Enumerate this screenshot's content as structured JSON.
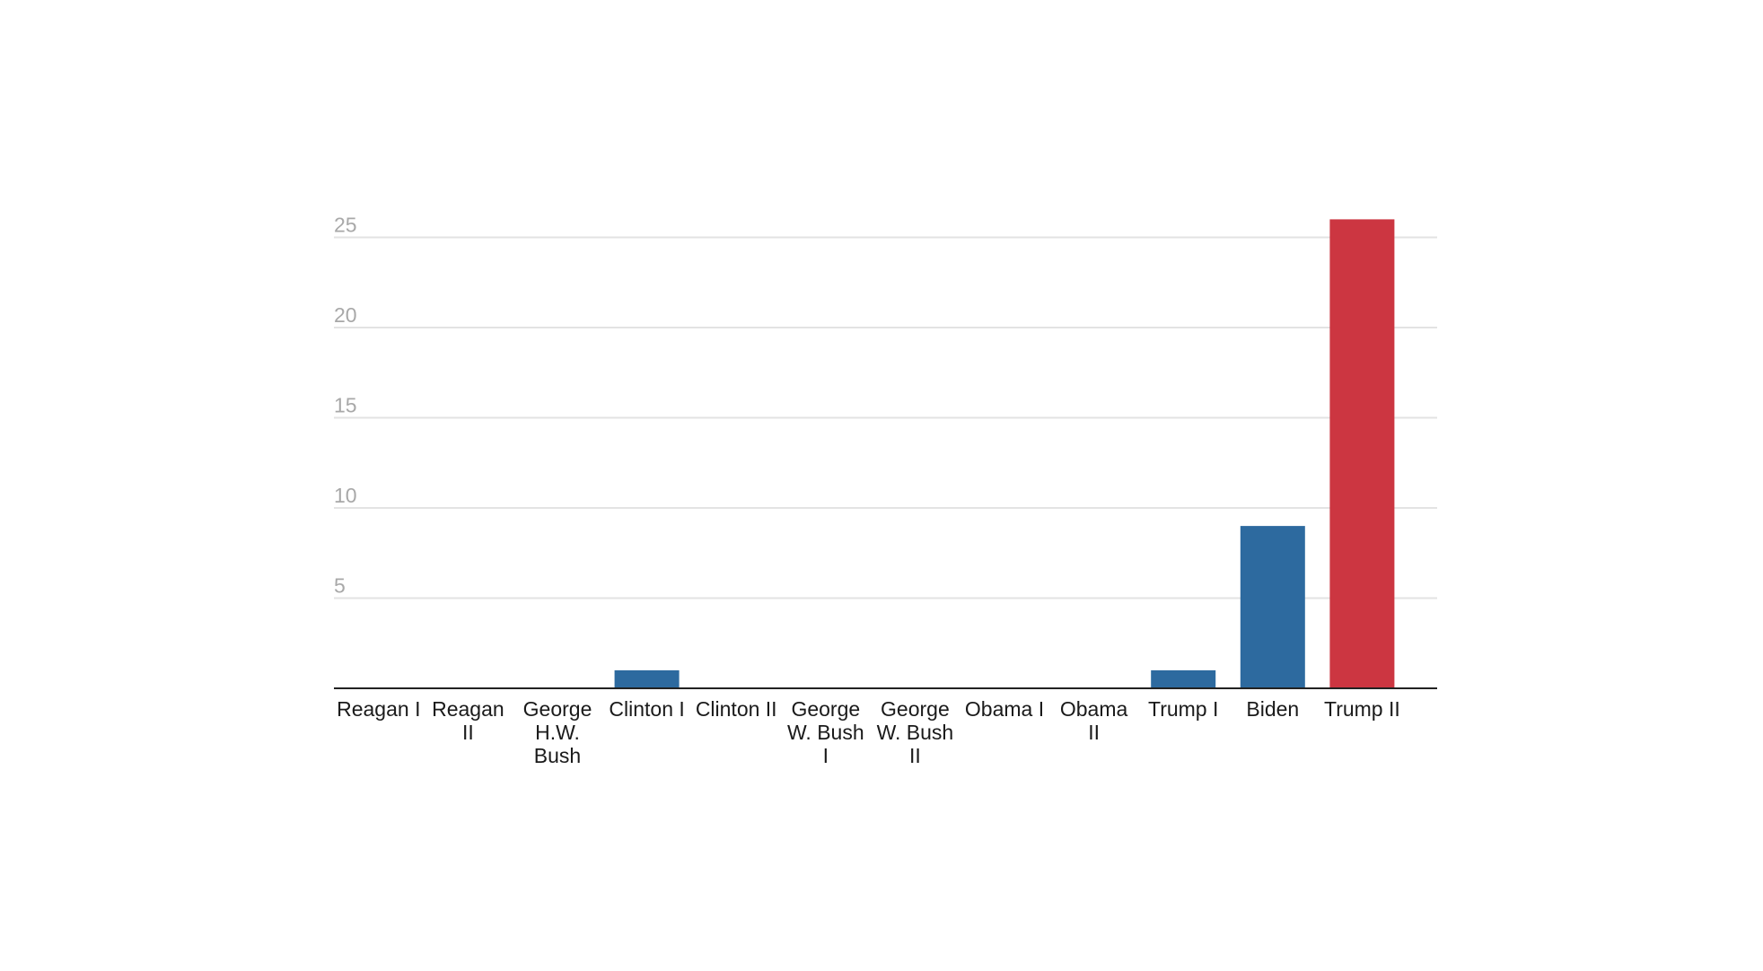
{
  "chart_data": {
    "type": "bar",
    "categories": [
      "Reagan I",
      "Reagan II",
      "George H.W. Bush",
      "Clinton I",
      "Clinton II",
      "George W. Bush I",
      "George W. Bush II",
      "Obama I",
      "Obama II",
      "Trump I",
      "Biden",
      "Trump II"
    ],
    "category_lines": [
      [
        "Reagan I"
      ],
      [
        "Reagan",
        "II"
      ],
      [
        "George",
        "H.W.",
        "Bush"
      ],
      [
        "Clinton I"
      ],
      [
        "Clinton II"
      ],
      [
        "George",
        "W. Bush",
        "I"
      ],
      [
        "George",
        "W. Bush",
        "II"
      ],
      [
        "Obama I"
      ],
      [
        "Obama",
        "II"
      ],
      [
        "Trump I"
      ],
      [
        "Biden"
      ],
      [
        "Trump II"
      ]
    ],
    "values": [
      0,
      0,
      0,
      1,
      0,
      0,
      0,
      0,
      0,
      1,
      9,
      26
    ],
    "bar_colors": [
      "#2d6a9f",
      "#2d6a9f",
      "#2d6a9f",
      "#2d6a9f",
      "#2d6a9f",
      "#2d6a9f",
      "#2d6a9f",
      "#2d6a9f",
      "#2d6a9f",
      "#2d6a9f",
      "#2d6a9f",
      "#cc3641"
    ],
    "y_ticks": [
      5,
      10,
      15,
      20,
      25
    ],
    "ylim": [
      0,
      26
    ],
    "grid": true,
    "legend": "none",
    "colors": {
      "default_bar": "#2d6a9f",
      "highlight_bar": "#cc3641",
      "grid": "#e3e3e3",
      "axis": "#222222",
      "y_tick_text": "#a8a8a8",
      "x_tick_text": "#1a1a1a"
    }
  }
}
